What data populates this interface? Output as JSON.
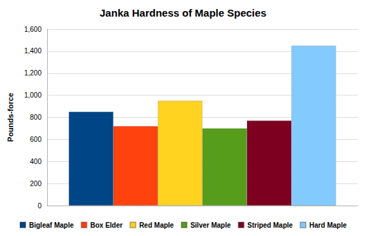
{
  "chart_data": {
    "type": "bar",
    "title": "Janka Hardness of Maple Species",
    "y_label": "Pounds-force",
    "categories": [
      null
    ],
    "series": [
      {
        "name": "Bigleaf Maple",
        "color": "#004586",
        "values": [
          850
        ]
      },
      {
        "name": "Box Elder",
        "color": "#ff420e",
        "values": [
          720
        ]
      },
      {
        "name": "Red Maple",
        "color": "#ffd320",
        "values": [
          950
        ]
      },
      {
        "name": "Silver Maple",
        "color": "#579d1c",
        "values": [
          700
        ]
      },
      {
        "name": "Striped Maple",
        "color": "#7e0021",
        "values": [
          770
        ]
      },
      {
        "name": "Hard Maple",
        "color": "#83caff",
        "values": [
          1450
        ]
      }
    ],
    "ylim": [
      0,
      1600
    ],
    "yticks": [
      0,
      200,
      400,
      600,
      800,
      {
        "value": 1000,
        "label": "1,000"
      },
      {
        "value": 1200,
        "label": "1,200"
      },
      {
        "value": 1400,
        "label": "1,400"
      },
      {
        "value": 1600,
        "label": "1,600"
      }
    ],
    "grid": true,
    "legend": "bottom",
    "tick_labels": "y"
  }
}
